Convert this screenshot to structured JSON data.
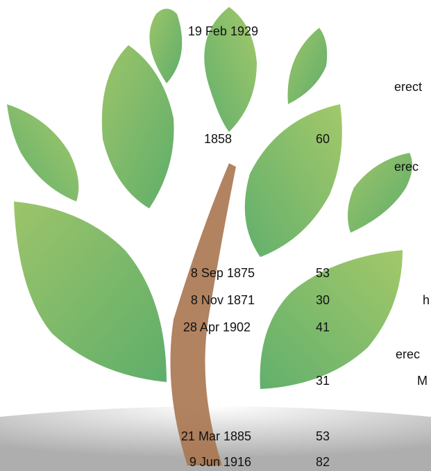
{
  "rows": [
    {
      "date": "19 Feb 1929"
    },
    {
      "note": "erect"
    },
    {
      "date": "1858",
      "age": 60
    },
    {
      "note": "erec"
    },
    {
      "date": "8 Sep 1875",
      "age": 53
    },
    {
      "date": "8 Nov 1871",
      "age": 30,
      "note": "h"
    },
    {
      "date": "28 Apr 1902",
      "age": 41
    },
    {
      "note": "erec"
    },
    {
      "age": 31,
      "note": "M"
    },
    {
      "date": "21 Mar 1885",
      "age": 53
    },
    {
      "date": "9 Jun 1916",
      "age": 82
    }
  ]
}
